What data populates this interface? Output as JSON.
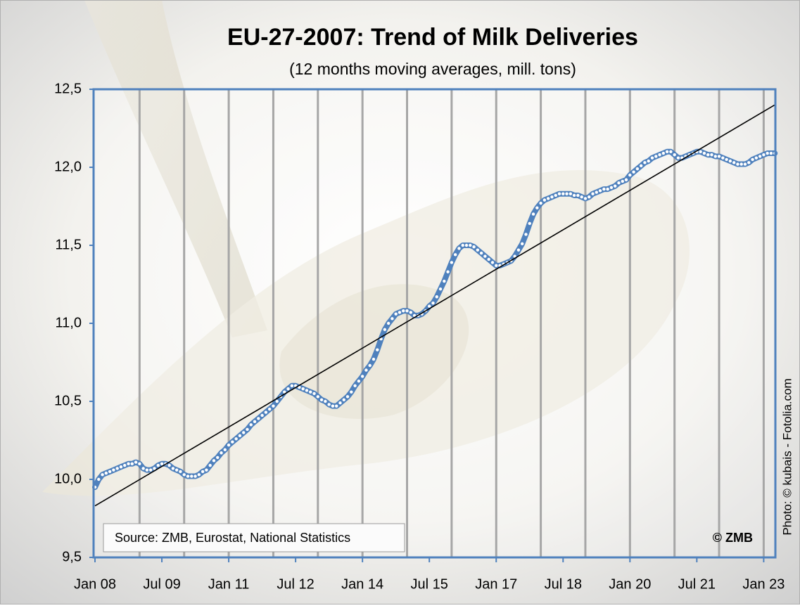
{
  "chart_data": {
    "type": "line",
    "title": "EU-27-2007: Trend of Milk Deliveries",
    "subtitle": "(12 months moving averages, mill. tons)",
    "categories": [
      "Jan 08",
      null,
      null,
      null,
      null,
      null,
      null,
      null,
      null,
      null,
      null,
      null,
      null,
      null,
      null,
      null,
      null,
      null,
      "Jul 09",
      null,
      null,
      null,
      null,
      null,
      null,
      null,
      null,
      null,
      null,
      null,
      null,
      null,
      null,
      null,
      null,
      null,
      "Jan 11",
      null,
      null,
      null,
      null,
      null,
      null,
      null,
      null,
      null,
      null,
      null,
      null,
      null,
      null,
      null,
      null,
      null,
      "Jul 12",
      null,
      null,
      null,
      null,
      null,
      null,
      null,
      null,
      null,
      null,
      null,
      null,
      null,
      null,
      null,
      null,
      null,
      "Jan 14",
      null,
      null,
      null,
      null,
      null,
      null,
      null,
      null,
      null,
      null,
      null,
      null,
      null,
      null,
      null,
      null,
      null,
      "Jul 15",
      null,
      null,
      null,
      null,
      null,
      null,
      null,
      null,
      null,
      null,
      null,
      null,
      null,
      null,
      null,
      null,
      null,
      "Jan 17",
      null,
      null,
      null,
      null,
      null,
      null,
      null,
      null,
      null,
      null,
      null,
      null,
      null,
      null,
      null,
      null,
      null,
      "Jul 18",
      null,
      null,
      null,
      null,
      null,
      null,
      null,
      null,
      null,
      null,
      null,
      null,
      null,
      null,
      null,
      null,
      null,
      "Jan 20",
      null,
      null,
      null,
      null,
      null,
      null,
      null,
      null,
      null,
      null,
      null,
      null,
      null,
      null,
      null,
      null,
      null,
      "Jul 21",
      null,
      null,
      null,
      null,
      null,
      null,
      null,
      null,
      null,
      null,
      null,
      null,
      null,
      null,
      null,
      null,
      null,
      "Jan 23",
      null,
      null,
      null
    ],
    "series": [
      {
        "color": "#4f81bd",
        "values": [
          9.95,
          10.0,
          10.03,
          10.04,
          10.05,
          10.06,
          10.07,
          10.08,
          10.09,
          10.1,
          10.1,
          10.11,
          10.1,
          10.07,
          10.06,
          10.06,
          10.07,
          10.09,
          10.1,
          10.1,
          10.09,
          10.07,
          10.06,
          10.05,
          10.03,
          10.02,
          10.02,
          10.02,
          10.03,
          10.05,
          10.06,
          10.09,
          10.12,
          10.14,
          10.17,
          10.19,
          10.22,
          10.24,
          10.26,
          10.28,
          10.3,
          10.32,
          10.35,
          10.37,
          10.39,
          10.41,
          10.43,
          10.45,
          10.47,
          10.5,
          10.53,
          10.56,
          10.58,
          10.6,
          10.6,
          10.59,
          10.58,
          10.57,
          10.56,
          10.55,
          10.53,
          10.51,
          10.5,
          10.48,
          10.47,
          10.47,
          10.49,
          10.51,
          10.53,
          10.56,
          10.6,
          10.63,
          10.66,
          10.7,
          10.73,
          10.77,
          10.83,
          10.9,
          10.96,
          11.0,
          11.03,
          11.06,
          11.07,
          11.08,
          11.08,
          11.07,
          11.05,
          11.05,
          11.06,
          11.08,
          11.11,
          11.13,
          11.17,
          11.22,
          11.27,
          11.33,
          11.39,
          11.44,
          11.48,
          11.5,
          11.5,
          11.5,
          11.49,
          11.47,
          11.45,
          11.43,
          11.41,
          11.39,
          11.37,
          11.37,
          11.38,
          11.39,
          11.4,
          11.43,
          11.47,
          11.51,
          11.57,
          11.64,
          11.7,
          11.74,
          11.77,
          11.79,
          11.8,
          11.81,
          11.82,
          11.83,
          11.83,
          11.83,
          11.83,
          11.82,
          11.82,
          11.81,
          11.8,
          11.81,
          11.83,
          11.84,
          11.85,
          11.86,
          11.86,
          11.87,
          11.88,
          11.9,
          11.91,
          11.92,
          11.95,
          11.97,
          11.99,
          12.01,
          12.03,
          12.04,
          12.06,
          12.07,
          12.08,
          12.09,
          12.1,
          12.1,
          12.08,
          12.06,
          12.06,
          12.07,
          12.08,
          12.09,
          12.1,
          12.1,
          12.09,
          12.08,
          12.08,
          12.07,
          12.07,
          12.06,
          12.05,
          12.04,
          12.03,
          12.02,
          12.02,
          12.02,
          12.03,
          12.05,
          12.06,
          12.07,
          12.08,
          12.09,
          12.09,
          12.09
        ]
      }
    ],
    "trendline": {
      "color": "#000000",
      "values": [
        9.83,
        12.4
      ]
    },
    "ylim": [
      9.5,
      12.5
    ],
    "yticks": [
      {
        "value": 9.5,
        "label": "9,5"
      },
      {
        "value": 10,
        "label": "10,0"
      },
      {
        "value": 10.5,
        "label": "10,5"
      },
      {
        "value": 11,
        "label": "11,0"
      },
      {
        "value": 11.5,
        "label": "11,5"
      },
      {
        "value": 12,
        "label": "12,0"
      },
      {
        "value": 12.5,
        "label": "12,5"
      }
    ],
    "annotations": {
      "source": "Source: ZMB, Eurostat,  National Statistics",
      "copyright": "© ZMB",
      "photo_credit": "Photo: © kubais - Fotolia.com"
    }
  }
}
